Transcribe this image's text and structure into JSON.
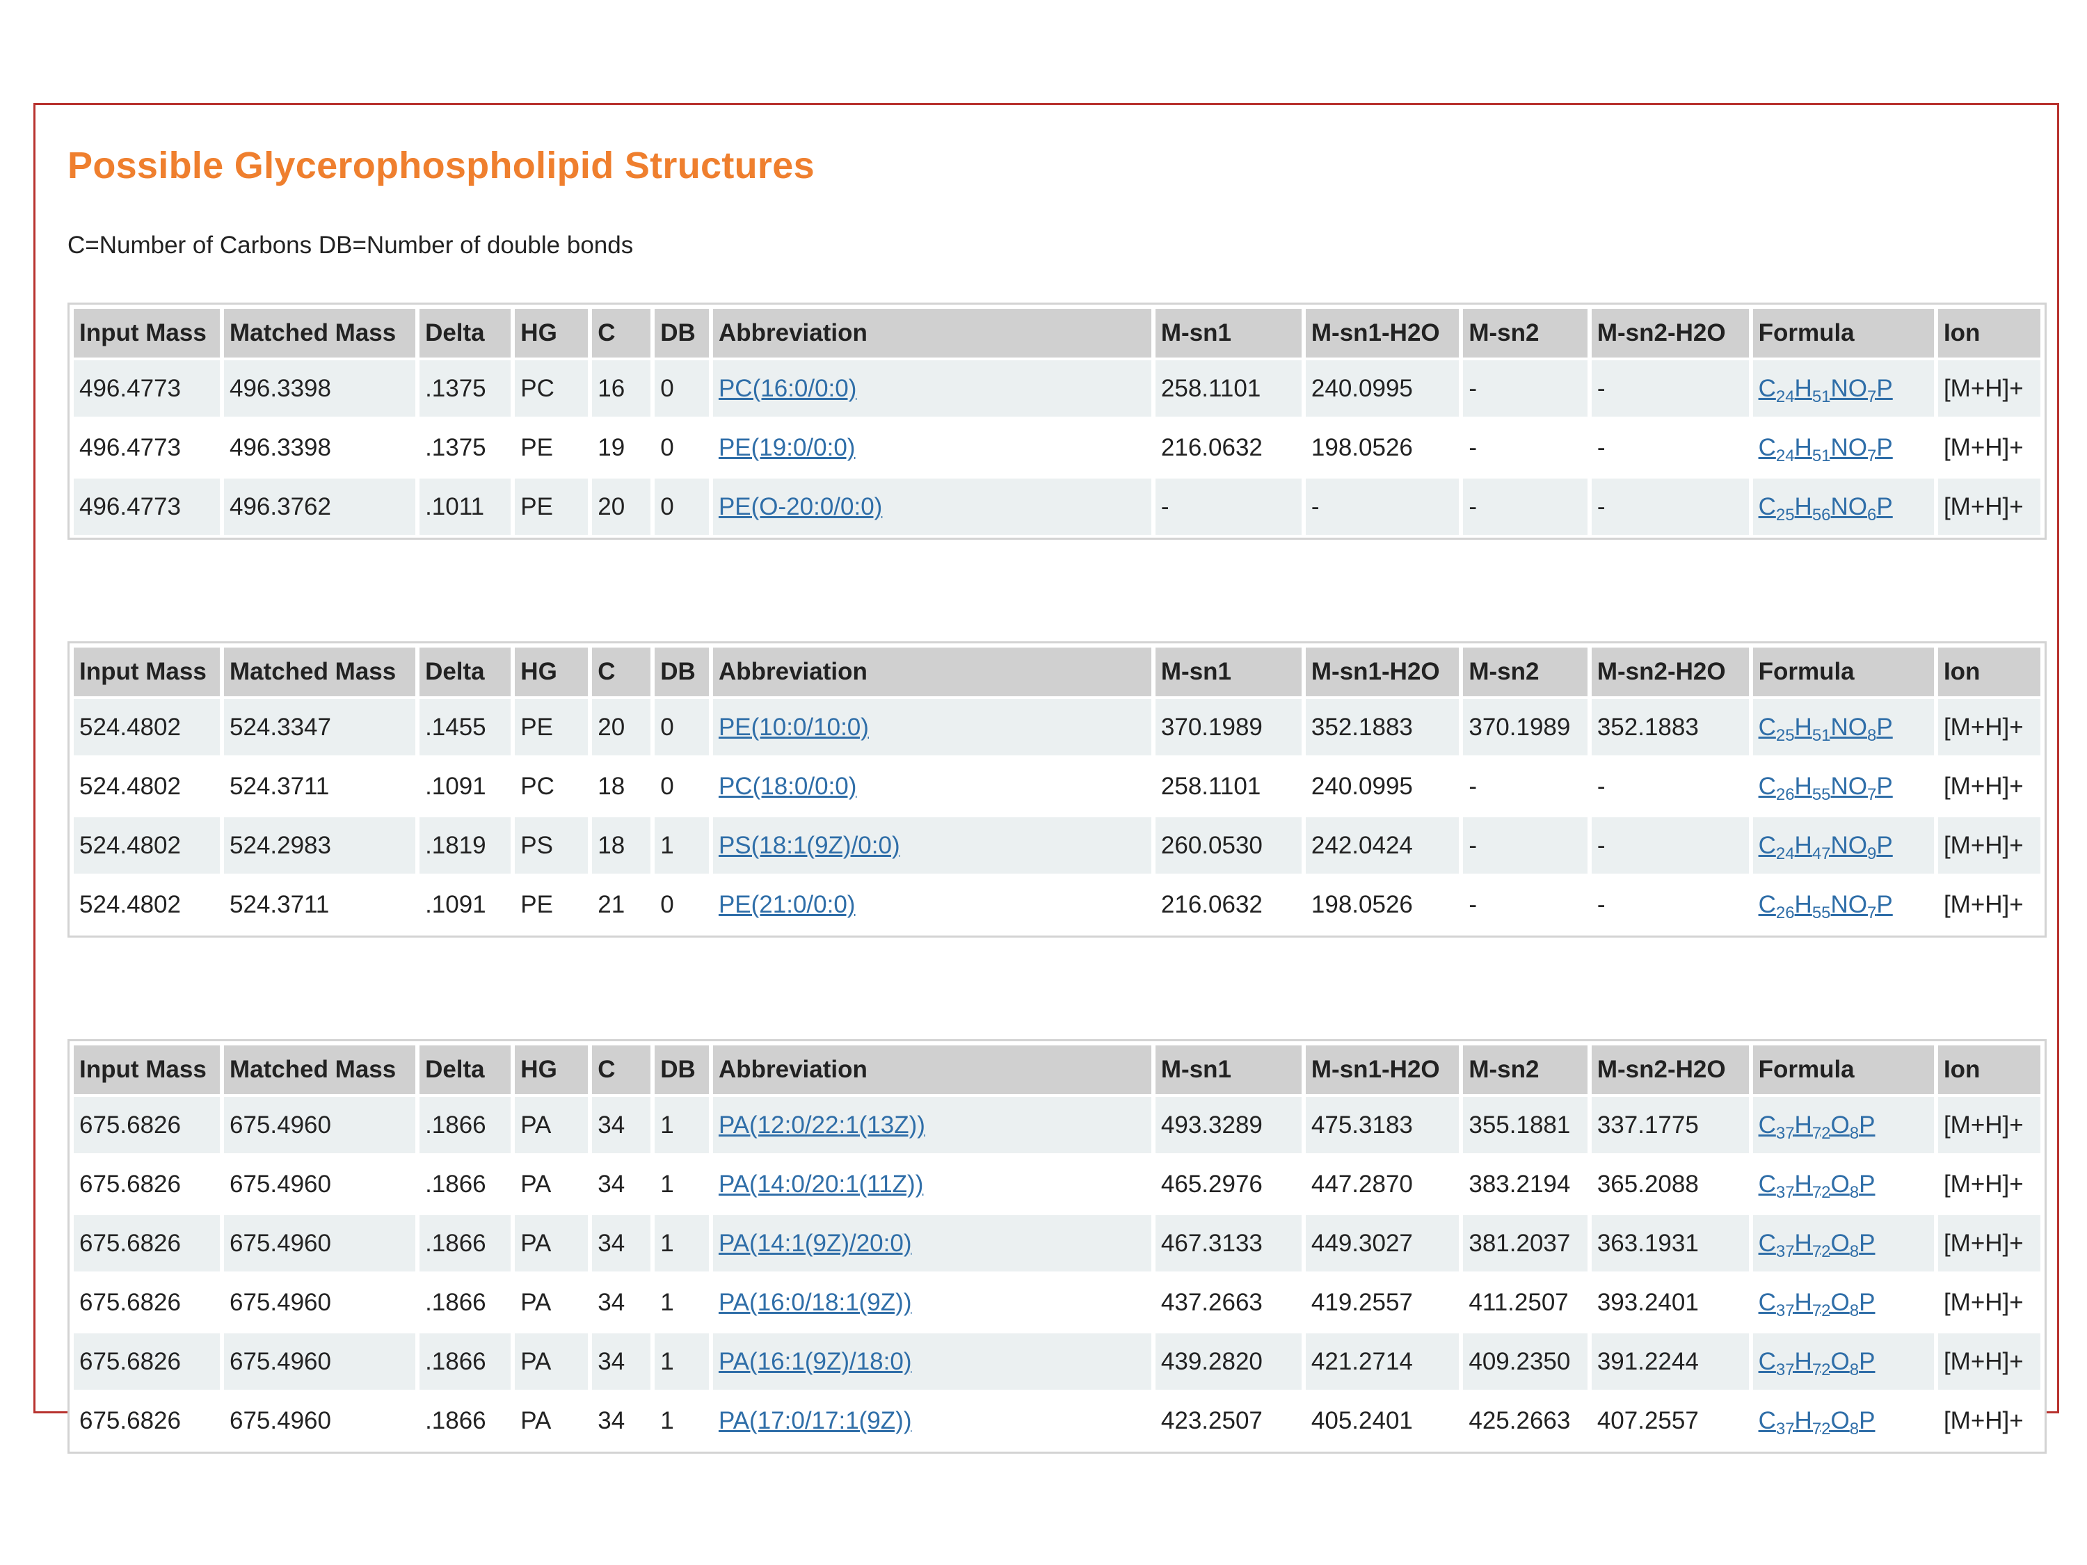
{
  "page": {
    "title": "Possible Glycerophospholipid Structures",
    "legend": "C=Number of Carbons DB=Number of double bonds"
  },
  "columns": [
    "Input Mass",
    "Matched Mass",
    "Delta",
    "HG",
    "C",
    "DB",
    "Abbreviation",
    "M-sn1",
    "M-sn1-H2O",
    "M-sn2",
    "M-sn2-H2O",
    "Formula",
    "Ion"
  ],
  "tables": [
    {
      "rows": [
        {
          "input_mass": "496.4773",
          "matched_mass": "496.3398",
          "delta": ".1375",
          "hg": "PC",
          "c": "16",
          "db": "0",
          "abbreviation": "PC(16:0/0:0)",
          "m_sn1": "258.1101",
          "m_sn1_h2o": "240.0995",
          "m_sn2": "-",
          "m_sn2_h2o": "-",
          "formula": [
            [
              "C",
              "24"
            ],
            [
              "H",
              "51"
            ],
            [
              "NO",
              "7"
            ],
            [
              "P",
              ""
            ]
          ],
          "ion": "[M+H]+"
        },
        {
          "input_mass": "496.4773",
          "matched_mass": "496.3398",
          "delta": ".1375",
          "hg": "PE",
          "c": "19",
          "db": "0",
          "abbreviation": "PE(19:0/0:0)",
          "m_sn1": "216.0632",
          "m_sn1_h2o": "198.0526",
          "m_sn2": "-",
          "m_sn2_h2o": "-",
          "formula": [
            [
              "C",
              "24"
            ],
            [
              "H",
              "51"
            ],
            [
              "NO",
              "7"
            ],
            [
              "P",
              ""
            ]
          ],
          "ion": "[M+H]+"
        },
        {
          "input_mass": "496.4773",
          "matched_mass": "496.3762",
          "delta": ".1011",
          "hg": "PE",
          "c": "20",
          "db": "0",
          "abbreviation": "PE(O-20:0/0:0)",
          "m_sn1": "-",
          "m_sn1_h2o": "-",
          "m_sn2": "-",
          "m_sn2_h2o": "-",
          "formula": [
            [
              "C",
              "25"
            ],
            [
              "H",
              "56"
            ],
            [
              "NO",
              "6"
            ],
            [
              "P",
              ""
            ]
          ],
          "ion": "[M+H]+"
        }
      ]
    },
    {
      "rows": [
        {
          "input_mass": "524.4802",
          "matched_mass": "524.3347",
          "delta": ".1455",
          "hg": "PE",
          "c": "20",
          "db": "0",
          "abbreviation": "PE(10:0/10:0)",
          "m_sn1": "370.1989",
          "m_sn1_h2o": "352.1883",
          "m_sn2": "370.1989",
          "m_sn2_h2o": "352.1883",
          "formula": [
            [
              "C",
              "25"
            ],
            [
              "H",
              "51"
            ],
            [
              "NO",
              "8"
            ],
            [
              "P",
              ""
            ]
          ],
          "ion": "[M+H]+"
        },
        {
          "input_mass": "524.4802",
          "matched_mass": "524.3711",
          "delta": ".1091",
          "hg": "PC",
          "c": "18",
          "db": "0",
          "abbreviation": "PC(18:0/0:0)",
          "m_sn1": "258.1101",
          "m_sn1_h2o": "240.0995",
          "m_sn2": "-",
          "m_sn2_h2o": "-",
          "formula": [
            [
              "C",
              "26"
            ],
            [
              "H",
              "55"
            ],
            [
              "NO",
              "7"
            ],
            [
              "P",
              ""
            ]
          ],
          "ion": "[M+H]+"
        },
        {
          "input_mass": "524.4802",
          "matched_mass": "524.2983",
          "delta": ".1819",
          "hg": "PS",
          "c": "18",
          "db": "1",
          "abbreviation": "PS(18:1(9Z)/0:0)",
          "m_sn1": "260.0530",
          "m_sn1_h2o": "242.0424",
          "m_sn2": "-",
          "m_sn2_h2o": "-",
          "formula": [
            [
              "C",
              "24"
            ],
            [
              "H",
              "47"
            ],
            [
              "NO",
              "9"
            ],
            [
              "P",
              ""
            ]
          ],
          "ion": "[M+H]+"
        },
        {
          "input_mass": "524.4802",
          "matched_mass": "524.3711",
          "delta": ".1091",
          "hg": "PE",
          "c": "21",
          "db": "0",
          "abbreviation": "PE(21:0/0:0)",
          "m_sn1": "216.0632",
          "m_sn1_h2o": "198.0526",
          "m_sn2": "-",
          "m_sn2_h2o": "-",
          "formula": [
            [
              "C",
              "26"
            ],
            [
              "H",
              "55"
            ],
            [
              "NO",
              "7"
            ],
            [
              "P",
              ""
            ]
          ],
          "ion": "[M+H]+"
        }
      ]
    },
    {
      "rows": [
        {
          "input_mass": "675.6826",
          "matched_mass": "675.4960",
          "delta": ".1866",
          "hg": "PA",
          "c": "34",
          "db": "1",
          "abbreviation": "PA(12:0/22:1(13Z))",
          "m_sn1": "493.3289",
          "m_sn1_h2o": "475.3183",
          "m_sn2": "355.1881",
          "m_sn2_h2o": "337.1775",
          "formula": [
            [
              "C",
              "37"
            ],
            [
              "H",
              "72"
            ],
            [
              "O",
              "8"
            ],
            [
              "P",
              ""
            ]
          ],
          "ion": "[M+H]+"
        },
        {
          "input_mass": "675.6826",
          "matched_mass": "675.4960",
          "delta": ".1866",
          "hg": "PA",
          "c": "34",
          "db": "1",
          "abbreviation": "PA(14:0/20:1(11Z))",
          "m_sn1": "465.2976",
          "m_sn1_h2o": "447.2870",
          "m_sn2": "383.2194",
          "m_sn2_h2o": "365.2088",
          "formula": [
            [
              "C",
              "37"
            ],
            [
              "H",
              "72"
            ],
            [
              "O",
              "8"
            ],
            [
              "P",
              ""
            ]
          ],
          "ion": "[M+H]+"
        },
        {
          "input_mass": "675.6826",
          "matched_mass": "675.4960",
          "delta": ".1866",
          "hg": "PA",
          "c": "34",
          "db": "1",
          "abbreviation": "PA(14:1(9Z)/20:0)",
          "m_sn1": "467.3133",
          "m_sn1_h2o": "449.3027",
          "m_sn2": "381.2037",
          "m_sn2_h2o": "363.1931",
          "formula": [
            [
              "C",
              "37"
            ],
            [
              "H",
              "72"
            ],
            [
              "O",
              "8"
            ],
            [
              "P",
              ""
            ]
          ],
          "ion": "[M+H]+"
        },
        {
          "input_mass": "675.6826",
          "matched_mass": "675.4960",
          "delta": ".1866",
          "hg": "PA",
          "c": "34",
          "db": "1",
          "abbreviation": "PA(16:0/18:1(9Z))",
          "m_sn1": "437.2663",
          "m_sn1_h2o": "419.2557",
          "m_sn2": "411.2507",
          "m_sn2_h2o": "393.2401",
          "formula": [
            [
              "C",
              "37"
            ],
            [
              "H",
              "72"
            ],
            [
              "O",
              "8"
            ],
            [
              "P",
              ""
            ]
          ],
          "ion": "[M+H]+"
        },
        {
          "input_mass": "675.6826",
          "matched_mass": "675.4960",
          "delta": ".1866",
          "hg": "PA",
          "c": "34",
          "db": "1",
          "abbreviation": "PA(16:1(9Z)/18:0)",
          "m_sn1": "439.2820",
          "m_sn1_h2o": "421.2714",
          "m_sn2": "409.2350",
          "m_sn2_h2o": "391.2244",
          "formula": [
            [
              "C",
              "37"
            ],
            [
              "H",
              "72"
            ],
            [
              "O",
              "8"
            ],
            [
              "P",
              ""
            ]
          ],
          "ion": "[M+H]+"
        },
        {
          "input_mass": "675.6826",
          "matched_mass": "675.4960",
          "delta": ".1866",
          "hg": "PA",
          "c": "34",
          "db": "1",
          "abbreviation": "PA(17:0/17:1(9Z))",
          "m_sn1": "423.2507",
          "m_sn1_h2o": "405.2401",
          "m_sn2": "425.2663",
          "m_sn2_h2o": "407.2557",
          "formula": [
            [
              "C",
              "37"
            ],
            [
              "H",
              "72"
            ],
            [
              "O",
              "8"
            ],
            [
              "P",
              ""
            ]
          ],
          "ion": "[M+H]+"
        }
      ]
    }
  ]
}
